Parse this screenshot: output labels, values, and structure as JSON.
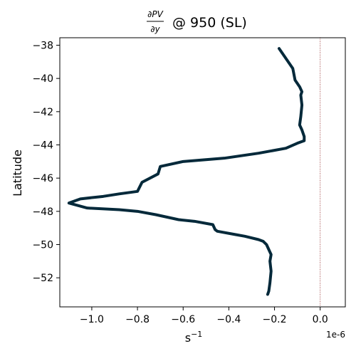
{
  "chart_data": {
    "type": "line",
    "title": {
      "numerator": "∂PV",
      "denominator": "∂y",
      "suffix": "@ 950 (SL)"
    },
    "xlabel": "s",
    "xlabel_exponent": "−1",
    "ylabel": "Latitude",
    "x_offset_label": "1e-6",
    "xlim": [
      -1.14,
      0.11
    ],
    "ylim": [
      -53.75,
      -37.55
    ],
    "xticks": [
      -1.0,
      -0.8,
      -0.6,
      -0.4,
      -0.2,
      0.0
    ],
    "xtick_labels": [
      "−1.0",
      "−0.8",
      "−0.6",
      "−0.4",
      "−0.2",
      "0.0"
    ],
    "yticks": [
      -38,
      -40,
      -42,
      -44,
      -46,
      -48,
      -50,
      -52
    ],
    "ytick_labels": [
      "−38",
      "−40",
      "−42",
      "−44",
      "−46",
      "−48",
      "−50",
      "−52"
    ],
    "reference_line": {
      "x": 0.0,
      "color": "#8b1a1a",
      "style": "dotted"
    },
    "line_color": "#04293a",
    "series": [
      {
        "x": [
          -0.23,
          -0.225,
          -0.22,
          -0.215,
          -0.22,
          -0.215,
          -0.225,
          -0.235,
          -0.25,
          -0.27,
          -0.33,
          -0.37,
          -0.45,
          -0.46,
          -0.47,
          -0.55,
          -0.62,
          -0.72,
          -0.8,
          -0.88,
          -1.02,
          -1.1,
          -1.05,
          -0.95,
          -0.88,
          -0.8,
          -0.78,
          -0.71,
          -0.7,
          -0.6,
          -0.42,
          -0.27,
          -0.15,
          -0.1,
          -0.07,
          -0.07,
          -0.08,
          -0.09,
          -0.085,
          -0.08,
          -0.085,
          -0.08,
          -0.09,
          -0.11,
          -0.12,
          -0.15,
          -0.18
        ],
        "y": [
          -53.0,
          -52.8,
          -52.3,
          -51.6,
          -51.0,
          -50.6,
          -50.3,
          -50.0,
          -49.8,
          -49.7,
          -49.5,
          -49.4,
          -49.2,
          -49.1,
          -48.8,
          -48.6,
          -48.5,
          -48.2,
          -48.0,
          -47.9,
          -47.8,
          -47.5,
          -47.25,
          -47.1,
          -46.95,
          -46.8,
          -46.25,
          -45.75,
          -45.3,
          -45.0,
          -44.8,
          -44.5,
          -44.2,
          -43.9,
          -43.75,
          -43.5,
          -43.1,
          -42.8,
          -42.3,
          -41.6,
          -41.0,
          -40.8,
          -40.5,
          -40.1,
          -39.4,
          -38.8,
          -38.2
        ]
      }
    ]
  }
}
